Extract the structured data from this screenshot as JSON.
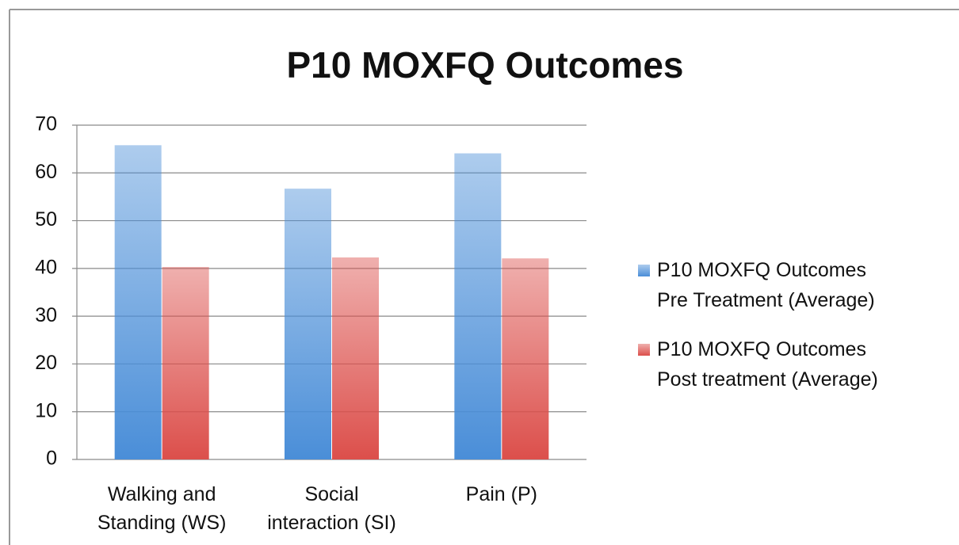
{
  "chart_data": {
    "type": "bar",
    "title": "P10 MOXFQ Outcomes",
    "categories": [
      "Walking and Standing (WS)",
      "Social interaction (SI)",
      "Pain (P)"
    ],
    "series": [
      {
        "name": "P10 MOXFQ Outcomes Pre Treatment (Average)",
        "color": "#4a8ed8",
        "values": [
          65.8,
          56.7,
          64.1
        ]
      },
      {
        "name": "P10 MOXFQ Outcomes Post treatment (Average)",
        "color": "#dc4f4b",
        "values": [
          40.3,
          42.3,
          42.1
        ]
      }
    ],
    "ylim": [
      0,
      70
    ],
    "yticks": [
      0,
      10,
      20,
      30,
      40,
      50,
      60,
      70
    ],
    "grid": true,
    "legend": "right"
  }
}
